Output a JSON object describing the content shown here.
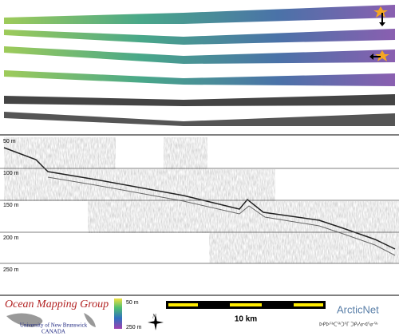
{
  "profile": {
    "depth_labels": [
      "50 m",
      "100 m",
      "150 m",
      "200 m",
      "250 m"
    ]
  },
  "logo": {
    "title": "Ocean Mapping Group",
    "university": "University of New Brunswick",
    "country": "CANADA"
  },
  "color_scale": {
    "top": "50 m",
    "bottom": "250 m"
  },
  "north": "N",
  "scale_bar": "10 km",
  "partner": {
    "name": "ArcticNet",
    "syllabics": "ᐅᑭᐅᖅᑕᖅᑐᕐᒥ ᑐᑭᓯᓂᐊᕐᓂᖅ"
  }
}
